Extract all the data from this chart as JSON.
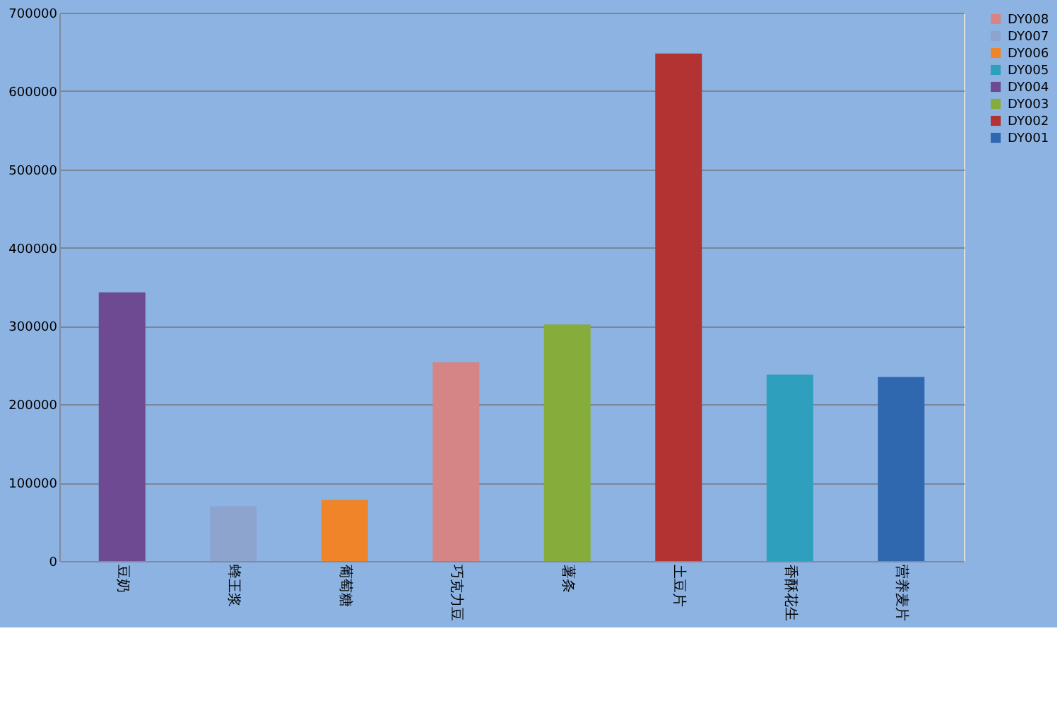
{
  "chart_data": {
    "type": "bar",
    "categories": [
      "豆奶",
      "蜂王浆",
      "葡萄糖",
      "巧克力豆",
      "薯条",
      "土豆片",
      "香酥花生",
      "营养麦片"
    ],
    "series": [
      {
        "name": "DY008",
        "color": "#d58585",
        "values": [
          null,
          null,
          null,
          254000,
          null,
          null,
          null,
          null
        ]
      },
      {
        "name": "DY007",
        "color": "#8da4cf",
        "values": [
          null,
          70000,
          null,
          null,
          null,
          null,
          null,
          null
        ]
      },
      {
        "name": "DY006",
        "color": "#ef8429",
        "values": [
          null,
          null,
          78000,
          null,
          null,
          null,
          null,
          null
        ]
      },
      {
        "name": "DY005",
        "color": "#2e9fbd",
        "values": [
          null,
          null,
          null,
          null,
          null,
          null,
          238000,
          null
        ]
      },
      {
        "name": "DY004",
        "color": "#6d4a92",
        "values": [
          343000,
          null,
          null,
          null,
          null,
          null,
          null,
          null
        ]
      },
      {
        "name": "DY003",
        "color": "#86ac3c",
        "values": [
          null,
          null,
          null,
          null,
          302000,
          null,
          null,
          null
        ]
      },
      {
        "name": "DY002",
        "color": "#b33232",
        "values": [
          null,
          null,
          null,
          null,
          null,
          648000,
          null,
          null
        ]
      },
      {
        "name": "DY001",
        "color": "#3068b0",
        "values": [
          null,
          null,
          null,
          null,
          null,
          null,
          null,
          235000
        ]
      }
    ],
    "ylim": [
      0,
      700000
    ],
    "yticks": [
      0,
      100000,
      200000,
      300000,
      400000,
      500000,
      600000,
      700000
    ],
    "grid": "y",
    "legend": "right"
  }
}
